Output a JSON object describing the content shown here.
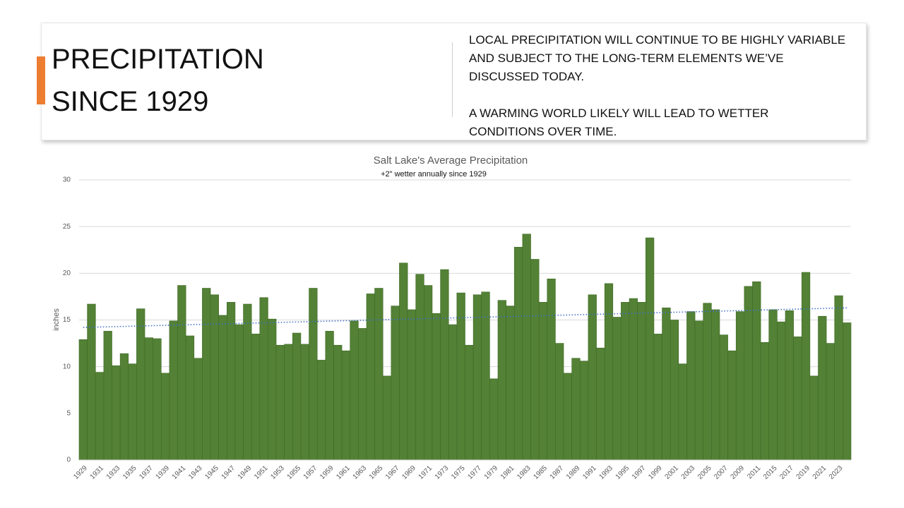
{
  "header": {
    "title_lines": [
      "PRECIPITATION",
      "SINCE 1929"
    ],
    "paragraphs": [
      [
        "LOCAL PRECIPITATION WILL CONTINUE TO BE HIGHLY VARIABLE",
        "AND SUBJECT TO THE LONG-TERM ELEMENTS WE’VE",
        "DISCUSSED TODAY."
      ],
      [
        "A WARMING WORLD LIKELY WILL LEAD TO WETTER",
        "CONDITIONS OVER TIME."
      ]
    ]
  },
  "chart_data": {
    "type": "bar",
    "title": "Salt Lake's Average Precipitation",
    "subtitle": "+2\" wetter annually since 1929",
    "ylabel": "inches",
    "categories": [
      "1929",
      null,
      "1931",
      null,
      "1933",
      null,
      "1935",
      null,
      "1937",
      null,
      "1939",
      null,
      "1941",
      null,
      "1943",
      null,
      "1945",
      null,
      "1947",
      null,
      "1949",
      null,
      "1951",
      null,
      "1953",
      null,
      "1955",
      null,
      "1957",
      null,
      "1959",
      null,
      "1961",
      null,
      "1963",
      null,
      "1965",
      null,
      "1967",
      null,
      "1969",
      null,
      "1971",
      null,
      "1973",
      null,
      "1975",
      null,
      "1977",
      null,
      "1979",
      null,
      "1981",
      null,
      "1983",
      null,
      "1985",
      null,
      "1987",
      null,
      "1989",
      null,
      "1991",
      null,
      "1993",
      null,
      "1995",
      null,
      "1997",
      null,
      "1999",
      null,
      "2001",
      null,
      "2003",
      null,
      "2005",
      null,
      "2007",
      null,
      "2009",
      null,
      "2011",
      null,
      "2015",
      null,
      "2017",
      null,
      "2019",
      null,
      "2021",
      null,
      "2023",
      null
    ],
    "values": [
      12.9,
      16.7,
      9.4,
      13.8,
      10.1,
      11.4,
      10.3,
      16.2,
      13.1,
      13.0,
      9.3,
      14.9,
      18.7,
      13.3,
      10.9,
      18.4,
      17.7,
      15.5,
      16.9,
      14.5,
      16.7,
      13.5,
      17.4,
      15.1,
      12.3,
      12.4,
      13.6,
      12.4,
      18.4,
      10.7,
      13.8,
      12.3,
      11.7,
      14.9,
      14.1,
      17.8,
      18.4,
      9.0,
      16.5,
      21.1,
      16.1,
      19.9,
      18.7,
      15.7,
      20.4,
      14.5,
      17.9,
      12.3,
      17.7,
      18.0,
      8.7,
      17.1,
      16.5,
      22.8,
      24.2,
      21.5,
      16.9,
      19.4,
      12.5,
      9.3,
      10.9,
      10.6,
      17.7,
      12.0,
      18.9,
      15.3,
      16.9,
      17.3,
      16.9,
      23.8,
      13.5,
      16.3,
      15.0,
      10.3,
      15.9,
      14.9,
      16.8,
      16.1,
      13.4,
      11.7,
      15.9,
      18.6,
      19.1,
      12.6,
      16.1,
      14.8,
      16.0,
      13.2,
      20.1,
      9.0,
      15.4,
      12.5,
      17.6,
      14.7
    ],
    "color": "#538135",
    "trend": {
      "values": [
        14.2,
        16.3
      ],
      "color": "#4472c4"
    },
    "ylim": [
      0,
      30
    ],
    "yticks": [
      0,
      5,
      10,
      15,
      20,
      25,
      30
    ],
    "grid": true
  }
}
